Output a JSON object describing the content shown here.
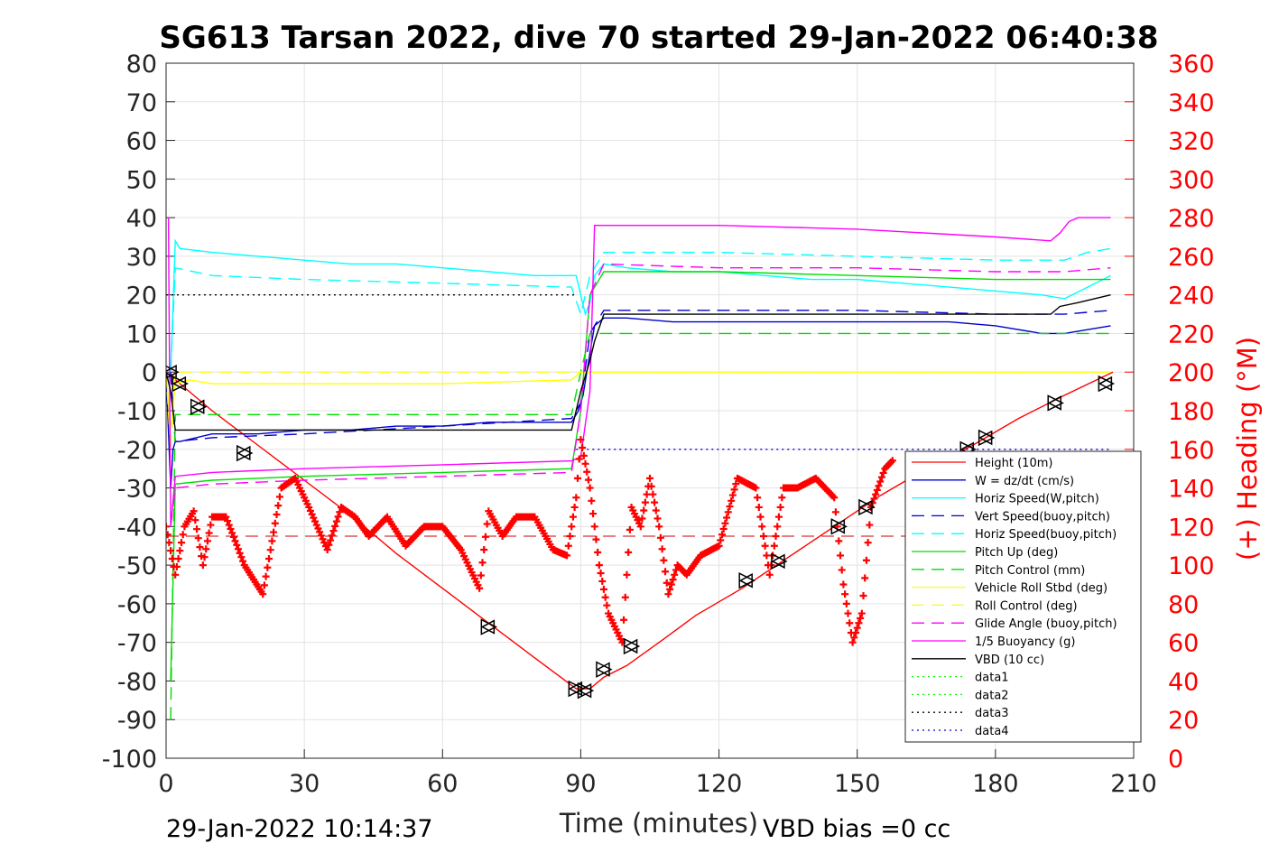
{
  "chart_data": {
    "type": "line",
    "title": "SG613 Tarsan 2022, dive 70 started 29-Jan-2022 06:40:38",
    "xlabel": "Time (minutes)",
    "ylabel_right": "(+) Heading (°M)",
    "xlim": [
      0,
      210
    ],
    "ylim": [
      -100,
      80
    ],
    "ylim_right": [
      0,
      360
    ],
    "x_ticks": [
      "0",
      "30",
      "60",
      "90",
      "120",
      "150",
      "180",
      "210"
    ],
    "y_ticks_left": [
      "80",
      "70",
      "60",
      "50",
      "40",
      "30",
      "20",
      "10",
      "0",
      "-10",
      "-20",
      "-30",
      "-40",
      "-50",
      "-60",
      "-70",
      "-80",
      "-90",
      "-100"
    ],
    "y_ticks_right": [
      "360",
      "340",
      "320",
      "300",
      "280",
      "260",
      "240",
      "220",
      "200",
      "180",
      "160",
      "140",
      "120",
      "100",
      "80",
      "60",
      "40",
      "20",
      "0"
    ],
    "grid": true,
    "legend_position": "bottom-right",
    "footer_left": "29-Jan-2022 10:14:37",
    "footer_right": "VBD bias =0 cc",
    "series": [
      {
        "name": "Height (10m)",
        "color": "#ff0000",
        "style": "solid",
        "x": [
          0,
          2,
          5,
          10,
          20,
          30,
          40,
          50,
          60,
          70,
          80,
          89,
          92,
          95,
          100,
          107,
          115,
          125,
          135,
          145,
          155,
          165,
          175,
          185,
          195,
          205.5
        ],
        "y": [
          0,
          -2,
          -5,
          -10,
          -19,
          -28,
          -37,
          -47,
          -56,
          -65,
          -74,
          -82,
          -82,
          -79,
          -76,
          -70,
          -63,
          -56,
          -48,
          -40,
          -32,
          -25,
          -19,
          -12,
          -6,
          0
        ]
      },
      {
        "name": "W = dz/dt (cm/s)",
        "color": "#0000cc",
        "style": "solid",
        "x": [
          0,
          1,
          1.5,
          2,
          3,
          10,
          20,
          30,
          40,
          50,
          60,
          70,
          80,
          88,
          89.5,
          90.5,
          92,
          93,
          95,
          100,
          110,
          120,
          130,
          140,
          150,
          160,
          170,
          180,
          190,
          195,
          200,
          205
        ],
        "y": [
          0,
          -30,
          -20,
          -18,
          -18,
          -16,
          -16,
          -15,
          -15,
          -14,
          -14,
          -13,
          -13,
          -13,
          -10,
          -6,
          5,
          12,
          14,
          14,
          13,
          13,
          13,
          13,
          13,
          13,
          13,
          12,
          10,
          10,
          11,
          12
        ]
      },
      {
        "name": "Horiz Speed(W,pitch)",
        "color": "#00ffff",
        "style": "solid",
        "x": [
          1,
          2,
          3,
          10,
          20,
          30,
          40,
          50,
          60,
          70,
          80,
          85,
          89,
          90,
          91,
          92,
          93,
          95,
          100,
          110,
          120,
          130,
          140,
          150,
          160,
          170,
          180,
          190,
          195,
          200,
          205
        ],
        "y": [
          0,
          34,
          32,
          31,
          30,
          29,
          28,
          28,
          27,
          26,
          25,
          25,
          25,
          20,
          15,
          18,
          25,
          28,
          27,
          26,
          26,
          25,
          24,
          24,
          23,
          22,
          21,
          20,
          19,
          22,
          25
        ]
      },
      {
        "name": "Vert Speed(buoy,pitch)",
        "color": "#0000cc",
        "style": "dashed",
        "x": [
          1,
          2,
          10,
          30,
          60,
          88,
          90,
          92,
          95,
          120,
          150,
          180,
          195,
          205
        ],
        "y": [
          0,
          -18,
          -17,
          -16,
          -14,
          -12,
          -8,
          10,
          16,
          16,
          16,
          15,
          15,
          16
        ]
      },
      {
        "name": "Horiz Speed(buoy,pitch)",
        "color": "#00ffff",
        "style": "dashed",
        "x": [
          1,
          2,
          10,
          30,
          60,
          88,
          90,
          92,
          95,
          120,
          150,
          180,
          195,
          200,
          205
        ],
        "y": [
          0,
          27,
          25,
          24,
          23,
          22,
          15,
          25,
          31,
          31,
          30,
          29,
          29,
          31,
          32
        ]
      },
      {
        "name": "Pitch Up (deg)",
        "color": "#00dd00",
        "style": "solid",
        "x": [
          1,
          2,
          10,
          30,
          60,
          88,
          90,
          92,
          95,
          120,
          150,
          180,
          195,
          205
        ],
        "y": [
          -80,
          -29,
          -28,
          -27,
          -26,
          -25,
          -10,
          20,
          26,
          26,
          25,
          24,
          24,
          24
        ]
      },
      {
        "name": "Pitch Control (mm)",
        "color": "#00dd00",
        "style": "dashed",
        "x": [
          1,
          2,
          10,
          30,
          60,
          88,
          90,
          92,
          95,
          120,
          150,
          180,
          205
        ],
        "y": [
          -90,
          -11,
          -11,
          -11,
          -11,
          -11,
          0,
          10,
          10,
          10,
          10,
          10,
          10
        ]
      },
      {
        "name": "Vehicle Roll Stbd (deg)",
        "color": "#ffff00",
        "style": "solid",
        "x": [
          0,
          1,
          2,
          5,
          10,
          30,
          60,
          88,
          90,
          92,
          100,
          120,
          150,
          180,
          200,
          205
        ],
        "y": [
          0,
          -15,
          -3,
          -2,
          -3,
          -3,
          -3,
          -2,
          0,
          0,
          0,
          0,
          0,
          0,
          0,
          0
        ]
      },
      {
        "name": "Roll Control (deg)",
        "color": "#ffff00",
        "style": "dashed",
        "x": [
          0,
          1,
          2,
          5,
          10,
          30,
          60,
          88,
          90,
          92,
          100,
          120,
          150,
          180,
          200,
          205
        ],
        "y": [
          0,
          -20,
          0,
          0,
          0,
          0,
          0,
          0,
          0,
          0,
          0,
          0,
          0,
          0,
          0,
          0
        ]
      },
      {
        "name": "Glide Angle (buoy,pitch)",
        "color": "#ff00ff",
        "style": "dashed",
        "x": [
          1,
          2,
          10,
          30,
          60,
          88,
          90,
          92,
          95,
          120,
          150,
          180,
          195,
          205
        ],
        "y": [
          -40,
          -30,
          -29,
          -28,
          -27,
          -26,
          -10,
          20,
          28,
          27,
          27,
          26,
          26,
          27
        ]
      },
      {
        "name": "1/5 Buoyancy (g)",
        "color": "#ff00ff",
        "style": "solid",
        "x": [
          0.5,
          1,
          2,
          10,
          30,
          60,
          88,
          90,
          92,
          93,
          120,
          150,
          180,
          192,
          194,
          196,
          198,
          205
        ],
        "y": [
          40,
          -40,
          -27,
          -26,
          -25,
          -24,
          -23,
          -22,
          -5,
          38,
          38,
          37,
          35,
          34,
          36,
          39,
          40,
          40
        ]
      },
      {
        "name": "VBD (10 cc)",
        "color": "#000000",
        "style": "solid",
        "x": [
          0,
          1,
          2,
          10,
          30,
          60,
          88,
          90,
          92,
          93,
          95,
          120,
          150,
          180,
          192,
          194,
          198,
          205
        ],
        "y": [
          0,
          -5,
          -15,
          -15,
          -15,
          -15,
          -15,
          -5,
          3,
          8,
          15,
          15,
          15,
          15,
          15,
          17,
          18,
          20
        ]
      },
      {
        "name": "data1",
        "color": "#00ff00",
        "style": "dotted",
        "x": [],
        "y": []
      },
      {
        "name": "data2",
        "color": "#00ff00",
        "style": "dotted",
        "x": [],
        "y": []
      },
      {
        "name": "data3",
        "color": "#000000",
        "style": "dotted",
        "x": [
          0,
          89
        ],
        "y": [
          20,
          20
        ]
      },
      {
        "name": "data4",
        "color": "#0000cc",
        "style": "dotted",
        "x": [
          89,
          205
        ],
        "y": [
          -20,
          -20
        ]
      }
    ],
    "heading": {
      "axis": "right",
      "color": "#ff0000",
      "marker": "+",
      "x": [
        0,
        2,
        4,
        6,
        8,
        10,
        13,
        17,
        21,
        25,
        28,
        31,
        35,
        38,
        41,
        44,
        48,
        52,
        56,
        60,
        64,
        68,
        70,
        73,
        76,
        80,
        84,
        87,
        89,
        90,
        92,
        94,
        96,
        99,
        101,
        103,
        105,
        107,
        109,
        111,
        113,
        116,
        120,
        124,
        128,
        131,
        134,
        137,
        141,
        145,
        147,
        149,
        151,
        153,
        156,
        158
      ],
      "y": [
        120,
        95,
        120,
        128,
        100,
        125,
        125,
        100,
        85,
        140,
        145,
        130,
        108,
        130,
        125,
        115,
        125,
        110,
        120,
        120,
        108,
        88,
        128,
        115,
        125,
        125,
        108,
        105,
        135,
        165,
        140,
        100,
        75,
        60,
        130,
        120,
        145,
        120,
        85,
        100,
        95,
        105,
        110,
        145,
        140,
        95,
        140,
        140,
        145,
        135,
        90,
        60,
        75,
        130,
        150,
        155
      ]
    },
    "heading_ref_line": {
      "value": 115,
      "color": "#cc0000",
      "style": "dashed"
    },
    "markers": {
      "shape": "triangles",
      "points": [
        {
          "x": 1,
          "y": 0
        },
        {
          "x": 3,
          "y": -3
        },
        {
          "x": 7,
          "y": -9
        },
        {
          "x": 17,
          "y": -21
        },
        {
          "x": 70,
          "y": -66
        },
        {
          "x": 89,
          "y": -82
        },
        {
          "x": 91,
          "y": -82.5
        },
        {
          "x": 95,
          "y": -77
        },
        {
          "x": 101,
          "y": -71
        },
        {
          "x": 126,
          "y": -54
        },
        {
          "x": 133,
          "y": -49
        },
        {
          "x": 146,
          "y": -40
        },
        {
          "x": 152,
          "y": -35
        },
        {
          "x": 174,
          "y": -20
        },
        {
          "x": 178,
          "y": -17
        },
        {
          "x": 193,
          "y": -8
        },
        {
          "x": 204,
          "y": -3
        }
      ]
    }
  }
}
